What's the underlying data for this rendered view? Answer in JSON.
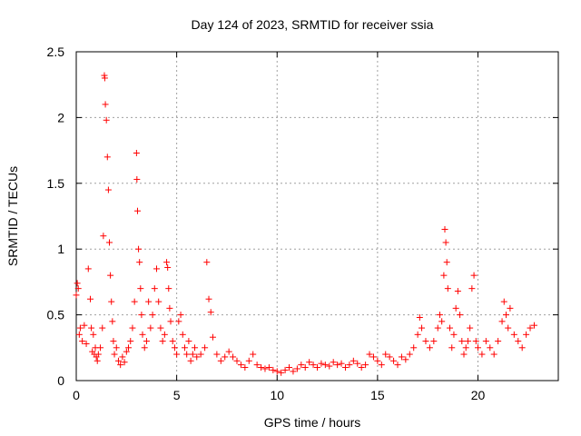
{
  "chart_data": {
    "type": "scatter",
    "title": "Day 124 of 2023, SRMTID for receiver ssia",
    "xlabel": "GPS time / hours",
    "ylabel": "SRMTID / TECUs",
    "xlim": [
      0,
      24
    ],
    "ylim": [
      0,
      2.5
    ],
    "xticks": [
      0,
      5,
      10,
      15,
      20
    ],
    "xtick_labels": [
      "0",
      "5",
      "10",
      "15",
      "20"
    ],
    "yticks": [
      0,
      0.5,
      1,
      1.5,
      2,
      2.5
    ],
    "ytick_labels": [
      "0",
      "0.5",
      "1",
      "1.5",
      "2",
      "2.5"
    ],
    "grid": true,
    "marker": "+",
    "color": "#ff0000",
    "series": [
      {
        "name": "SRMTID",
        "x": [
          0.0,
          0.05,
          0.1,
          0.15,
          0.2,
          0.3,
          0.4,
          0.5,
          0.6,
          0.7,
          0.75,
          0.8,
          0.85,
          0.9,
          0.95,
          1.0,
          1.05,
          1.1,
          1.2,
          1.3,
          1.35,
          1.4,
          1.42,
          1.45,
          1.5,
          1.55,
          1.6,
          1.65,
          1.7,
          1.75,
          1.8,
          1.85,
          1.9,
          2.0,
          2.1,
          2.2,
          2.3,
          2.4,
          2.5,
          2.6,
          2.7,
          2.8,
          2.9,
          3.0,
          3.02,
          3.05,
          3.1,
          3.15,
          3.2,
          3.25,
          3.3,
          3.4,
          3.5,
          3.6,
          3.7,
          3.8,
          3.9,
          4.0,
          4.1,
          4.2,
          4.3,
          4.4,
          4.5,
          4.55,
          4.6,
          4.65,
          4.7,
          4.8,
          4.9,
          5.0,
          5.1,
          5.2,
          5.3,
          5.4,
          5.5,
          5.6,
          5.7,
          5.8,
          5.9,
          6.0,
          6.2,
          6.4,
          6.5,
          6.6,
          6.7,
          6.8,
          7.0,
          7.2,
          7.4,
          7.6,
          7.8,
          8.0,
          8.2,
          8.4,
          8.6,
          8.8,
          9.0,
          9.2,
          9.4,
          9.6,
          9.8,
          10.0,
          10.2,
          10.4,
          10.6,
          10.8,
          11.0,
          11.2,
          11.4,
          11.6,
          11.8,
          12.0,
          12.2,
          12.4,
          12.6,
          12.8,
          13.0,
          13.2,
          13.4,
          13.6,
          13.8,
          14.0,
          14.2,
          14.4,
          14.6,
          14.8,
          15.0,
          15.2,
          15.4,
          15.6,
          15.8,
          16.0,
          16.2,
          16.4,
          16.6,
          16.8,
          17.0,
          17.1,
          17.2,
          17.4,
          17.6,
          17.8,
          18.0,
          18.1,
          18.2,
          18.3,
          18.35,
          18.4,
          18.45,
          18.5,
          18.6,
          18.7,
          18.8,
          18.9,
          19.0,
          19.1,
          19.2,
          19.3,
          19.4,
          19.5,
          19.6,
          19.7,
          19.8,
          19.9,
          20.0,
          20.2,
          20.4,
          20.6,
          20.8,
          21.0,
          21.2,
          21.3,
          21.4,
          21.5,
          21.6,
          21.8,
          22.0,
          22.2,
          22.4,
          22.6,
          22.8
        ],
        "y": [
          0.65,
          0.74,
          0.7,
          0.35,
          0.4,
          0.3,
          0.42,
          0.28,
          0.85,
          0.62,
          0.4,
          0.22,
          0.35,
          0.2,
          0.25,
          0.18,
          0.15,
          0.2,
          0.25,
          0.4,
          1.1,
          2.32,
          2.3,
          2.1,
          1.98,
          1.7,
          1.45,
          1.05,
          0.8,
          0.6,
          0.45,
          0.3,
          0.2,
          0.25,
          0.15,
          0.12,
          0.18,
          0.14,
          0.22,
          0.25,
          0.3,
          0.4,
          0.6,
          1.73,
          1.53,
          1.29,
          1.0,
          0.9,
          0.7,
          0.5,
          0.35,
          0.25,
          0.3,
          0.6,
          0.4,
          0.5,
          0.7,
          0.85,
          0.6,
          0.4,
          0.3,
          0.35,
          0.9,
          0.86,
          0.7,
          0.55,
          0.45,
          0.3,
          0.25,
          0.2,
          0.45,
          0.5,
          0.35,
          0.25,
          0.2,
          0.3,
          0.15,
          0.2,
          0.25,
          0.18,
          0.2,
          0.25,
          0.9,
          0.62,
          0.52,
          0.33,
          0.2,
          0.15,
          0.18,
          0.22,
          0.18,
          0.15,
          0.12,
          0.1,
          0.15,
          0.2,
          0.12,
          0.1,
          0.09,
          0.1,
          0.08,
          0.07,
          0.06,
          0.08,
          0.1,
          0.07,
          0.09,
          0.12,
          0.1,
          0.14,
          0.12,
          0.1,
          0.13,
          0.12,
          0.11,
          0.14,
          0.12,
          0.13,
          0.1,
          0.12,
          0.15,
          0.13,
          0.1,
          0.12,
          0.2,
          0.18,
          0.15,
          0.12,
          0.2,
          0.18,
          0.15,
          0.12,
          0.18,
          0.16,
          0.2,
          0.25,
          0.35,
          0.48,
          0.4,
          0.3,
          0.25,
          0.3,
          0.4,
          0.5,
          0.45,
          0.8,
          1.15,
          1.05,
          0.9,
          0.7,
          0.4,
          0.25,
          0.35,
          0.55,
          0.68,
          0.5,
          0.3,
          0.2,
          0.25,
          0.3,
          0.4,
          0.7,
          0.8,
          0.3,
          0.25,
          0.2,
          0.3,
          0.25,
          0.2,
          0.3,
          0.45,
          0.6,
          0.5,
          0.4,
          0.55,
          0.35,
          0.3,
          0.25,
          0.35,
          0.4,
          0.42
        ]
      }
    ]
  }
}
